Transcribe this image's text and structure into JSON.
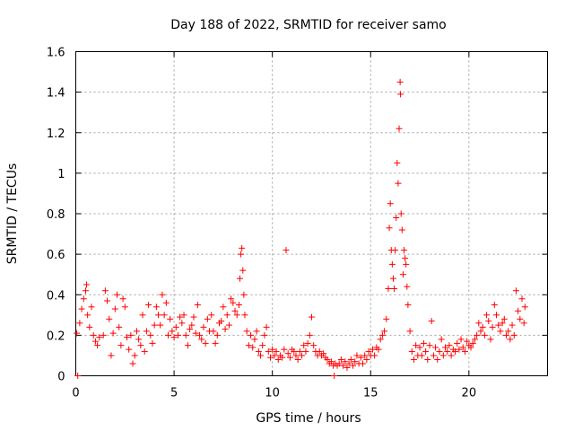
{
  "chart_data": {
    "type": "scatter",
    "title": "Day 188 of 2022, SRMTID for receiver samo",
    "xlabel": "GPS time / hours",
    "ylabel": "SRMTID / TECUs",
    "xlim": [
      0,
      24
    ],
    "ylim": [
      0,
      1.6
    ],
    "xticks": [
      0,
      5,
      10,
      15,
      20
    ],
    "xtick_labels": [
      "0",
      "5",
      "10",
      "15",
      "20"
    ],
    "yticks": [
      0,
      0.2,
      0.4,
      0.6,
      0.8,
      1.0,
      1.2,
      1.4,
      1.6
    ],
    "ytick_labels": [
      "0",
      "0.2",
      "0.4",
      "0.6",
      "0.8",
      "1",
      "1.2",
      "1.4",
      "1.6"
    ],
    "grid": true,
    "marker": "plus",
    "color": "#ff0000",
    "series": [
      {
        "name": "SRMTID",
        "points": [
          [
            0.05,
            0.21
          ],
          [
            0.1,
            0.0
          ],
          [
            0.2,
            0.26
          ],
          [
            0.3,
            0.33
          ],
          [
            0.4,
            0.38
          ],
          [
            0.5,
            0.42
          ],
          [
            0.55,
            0.45
          ],
          [
            0.6,
            0.3
          ],
          [
            0.7,
            0.24
          ],
          [
            0.8,
            0.34
          ],
          [
            0.9,
            0.2
          ],
          [
            1.0,
            0.17
          ],
          [
            1.1,
            0.15
          ],
          [
            1.2,
            0.19
          ],
          [
            1.4,
            0.2
          ],
          [
            1.5,
            0.42
          ],
          [
            1.6,
            0.37
          ],
          [
            1.7,
            0.28
          ],
          [
            1.8,
            0.1
          ],
          [
            1.9,
            0.21
          ],
          [
            2.0,
            0.33
          ],
          [
            2.1,
            0.4
          ],
          [
            2.2,
            0.24
          ],
          [
            2.3,
            0.15
          ],
          [
            2.4,
            0.38
          ],
          [
            2.5,
            0.34
          ],
          [
            2.6,
            0.19
          ],
          [
            2.7,
            0.13
          ],
          [
            2.8,
            0.2
          ],
          [
            2.9,
            0.06
          ],
          [
            3.0,
            0.1
          ],
          [
            3.1,
            0.22
          ],
          [
            3.2,
            0.18
          ],
          [
            3.3,
            0.15
          ],
          [
            3.4,
            0.3
          ],
          [
            3.5,
            0.12
          ],
          [
            3.6,
            0.22
          ],
          [
            3.7,
            0.35
          ],
          [
            3.8,
            0.2
          ],
          [
            3.9,
            0.16
          ],
          [
            4.0,
            0.25
          ],
          [
            4.1,
            0.34
          ],
          [
            4.2,
            0.3
          ],
          [
            4.3,
            0.25
          ],
          [
            4.4,
            0.4
          ],
          [
            4.5,
            0.3
          ],
          [
            4.6,
            0.36
          ],
          [
            4.7,
            0.2
          ],
          [
            4.8,
            0.28
          ],
          [
            4.9,
            0.22
          ],
          [
            5.0,
            0.19
          ],
          [
            5.1,
            0.24
          ],
          [
            5.2,
            0.2
          ],
          [
            5.3,
            0.29
          ],
          [
            5.4,
            0.26
          ],
          [
            5.5,
            0.3
          ],
          [
            5.6,
            0.2
          ],
          [
            5.7,
            0.15
          ],
          [
            5.8,
            0.23
          ],
          [
            5.9,
            0.25
          ],
          [
            6.0,
            0.29
          ],
          [
            6.1,
            0.21
          ],
          [
            6.2,
            0.35
          ],
          [
            6.3,
            0.2
          ],
          [
            6.4,
            0.18
          ],
          [
            6.5,
            0.24
          ],
          [
            6.6,
            0.16
          ],
          [
            6.7,
            0.28
          ],
          [
            6.8,
            0.22
          ],
          [
            6.9,
            0.3
          ],
          [
            7.0,
            0.22
          ],
          [
            7.1,
            0.16
          ],
          [
            7.2,
            0.2
          ],
          [
            7.3,
            0.26
          ],
          [
            7.4,
            0.27
          ],
          [
            7.5,
            0.34
          ],
          [
            7.6,
            0.23
          ],
          [
            7.7,
            0.3
          ],
          [
            7.8,
            0.25
          ],
          [
            7.9,
            0.38
          ],
          [
            8.0,
            0.36
          ],
          [
            8.1,
            0.32
          ],
          [
            8.2,
            0.3
          ],
          [
            8.3,
            0.35
          ],
          [
            8.35,
            0.48
          ],
          [
            8.4,
            0.6
          ],
          [
            8.45,
            0.63
          ],
          [
            8.5,
            0.52
          ],
          [
            8.55,
            0.4
          ],
          [
            8.6,
            0.3
          ],
          [
            8.7,
            0.22
          ],
          [
            8.8,
            0.15
          ],
          [
            8.9,
            0.2
          ],
          [
            9.0,
            0.14
          ],
          [
            9.1,
            0.18
          ],
          [
            9.2,
            0.22
          ],
          [
            9.3,
            0.12
          ],
          [
            9.4,
            0.1
          ],
          [
            9.5,
            0.15
          ],
          [
            9.6,
            0.2
          ],
          [
            9.7,
            0.24
          ],
          [
            9.8,
            0.12
          ],
          [
            9.9,
            0.09
          ],
          [
            10.0,
            0.13
          ],
          [
            10.1,
            0.1
          ],
          [
            10.2,
            0.12
          ],
          [
            10.3,
            0.08
          ],
          [
            10.4,
            0.1
          ],
          [
            10.5,
            0.09
          ],
          [
            10.6,
            0.13
          ],
          [
            10.7,
            0.62
          ],
          [
            10.8,
            0.11
          ],
          [
            10.9,
            0.09
          ],
          [
            11.0,
            0.13
          ],
          [
            11.1,
            0.12
          ],
          [
            11.2,
            0.1
          ],
          [
            11.3,
            0.08
          ],
          [
            11.4,
            0.12
          ],
          [
            11.5,
            0.1
          ],
          [
            11.6,
            0.15
          ],
          [
            11.7,
            0.12
          ],
          [
            11.8,
            0.16
          ],
          [
            11.9,
            0.2
          ],
          [
            12.0,
            0.29
          ],
          [
            12.1,
            0.15
          ],
          [
            12.2,
            0.12
          ],
          [
            12.3,
            0.1
          ],
          [
            12.4,
            0.12
          ],
          [
            12.5,
            0.1
          ],
          [
            12.6,
            0.11
          ],
          [
            12.7,
            0.09
          ],
          [
            12.8,
            0.08
          ],
          [
            12.9,
            0.06
          ],
          [
            13.0,
            0.07
          ],
          [
            13.1,
            0.05
          ],
          [
            13.15,
            0.0
          ],
          [
            13.2,
            0.06
          ],
          [
            13.3,
            0.05
          ],
          [
            13.4,
            0.06
          ],
          [
            13.5,
            0.08
          ],
          [
            13.6,
            0.05
          ],
          [
            13.7,
            0.07
          ],
          [
            13.8,
            0.04
          ],
          [
            13.9,
            0.06
          ],
          [
            14.0,
            0.08
          ],
          [
            14.1,
            0.05
          ],
          [
            14.2,
            0.07
          ],
          [
            14.3,
            0.1
          ],
          [
            14.4,
            0.06
          ],
          [
            14.5,
            0.09
          ],
          [
            14.6,
            0.06
          ],
          [
            14.7,
            0.1
          ],
          [
            14.8,
            0.08
          ],
          [
            14.9,
            0.12
          ],
          [
            15.0,
            0.1
          ],
          [
            15.1,
            0.13
          ],
          [
            15.2,
            0.1
          ],
          [
            15.3,
            0.14
          ],
          [
            15.4,
            0.13
          ],
          [
            15.5,
            0.18
          ],
          [
            15.6,
            0.2
          ],
          [
            15.7,
            0.22
          ],
          [
            15.8,
            0.28
          ],
          [
            15.9,
            0.43
          ],
          [
            15.95,
            0.73
          ],
          [
            16.0,
            0.85
          ],
          [
            16.05,
            0.62
          ],
          [
            16.1,
            0.55
          ],
          [
            16.15,
            0.48
          ],
          [
            16.2,
            0.43
          ],
          [
            16.25,
            0.62
          ],
          [
            16.3,
            0.78
          ],
          [
            16.35,
            1.05
          ],
          [
            16.4,
            0.95
          ],
          [
            16.45,
            1.22
          ],
          [
            16.5,
            1.45
          ],
          [
            16.52,
            1.39
          ],
          [
            16.55,
            0.8
          ],
          [
            16.6,
            0.72
          ],
          [
            16.65,
            0.5
          ],
          [
            16.7,
            0.62
          ],
          [
            16.75,
            0.58
          ],
          [
            16.8,
            0.55
          ],
          [
            16.85,
            0.44
          ],
          [
            16.9,
            0.35
          ],
          [
            17.0,
            0.22
          ],
          [
            17.1,
            0.12
          ],
          [
            17.2,
            0.08
          ],
          [
            17.3,
            0.15
          ],
          [
            17.4,
            0.1
          ],
          [
            17.5,
            0.14
          ],
          [
            17.6,
            0.1
          ],
          [
            17.7,
            0.16
          ],
          [
            17.8,
            0.12
          ],
          [
            17.9,
            0.08
          ],
          [
            18.0,
            0.15
          ],
          [
            18.1,
            0.27
          ],
          [
            18.2,
            0.1
          ],
          [
            18.3,
            0.14
          ],
          [
            18.4,
            0.08
          ],
          [
            18.5,
            0.12
          ],
          [
            18.6,
            0.18
          ],
          [
            18.7,
            0.1
          ],
          [
            18.8,
            0.14
          ],
          [
            18.9,
            0.12
          ],
          [
            19.0,
            0.15
          ],
          [
            19.1,
            0.1
          ],
          [
            19.2,
            0.13
          ],
          [
            19.3,
            0.12
          ],
          [
            19.4,
            0.16
          ],
          [
            19.5,
            0.13
          ],
          [
            19.6,
            0.18
          ],
          [
            19.7,
            0.14
          ],
          [
            19.8,
            0.12
          ],
          [
            19.9,
            0.17
          ],
          [
            20.0,
            0.15
          ],
          [
            20.1,
            0.14
          ],
          [
            20.2,
            0.16
          ],
          [
            20.3,
            0.18
          ],
          [
            20.4,
            0.2
          ],
          [
            20.5,
            0.26
          ],
          [
            20.6,
            0.22
          ],
          [
            20.7,
            0.24
          ],
          [
            20.8,
            0.2
          ],
          [
            20.9,
            0.3
          ],
          [
            21.0,
            0.27
          ],
          [
            21.1,
            0.18
          ],
          [
            21.2,
            0.24
          ],
          [
            21.3,
            0.35
          ],
          [
            21.4,
            0.3
          ],
          [
            21.5,
            0.25
          ],
          [
            21.6,
            0.22
          ],
          [
            21.7,
            0.26
          ],
          [
            21.8,
            0.28
          ],
          [
            21.9,
            0.2
          ],
          [
            22.0,
            0.22
          ],
          [
            22.1,
            0.18
          ],
          [
            22.2,
            0.25
          ],
          [
            22.3,
            0.2
          ],
          [
            22.4,
            0.42
          ],
          [
            22.5,
            0.32
          ],
          [
            22.6,
            0.28
          ],
          [
            22.7,
            0.38
          ],
          [
            22.8,
            0.26
          ],
          [
            22.85,
            0.34
          ]
        ]
      }
    ]
  }
}
